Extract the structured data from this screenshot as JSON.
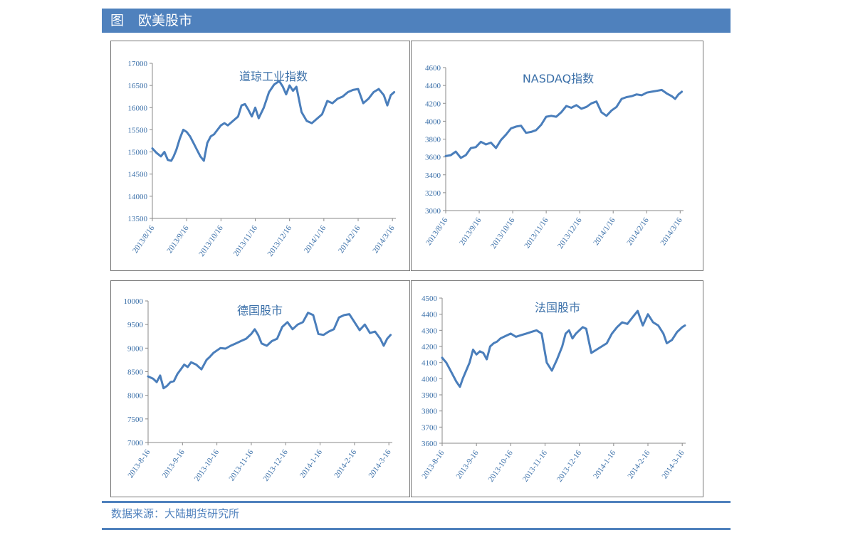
{
  "header": {
    "figure_label": "图",
    "title": "欧美股市"
  },
  "source_text": "数据来源：大陆期货研究所",
  "colors": {
    "line": "#4a7ebb",
    "banner": "#4f81bd",
    "text": "#3a6fa8"
  },
  "chart_data": [
    {
      "type": "line",
      "title": "道琼工业指数",
      "x_tick_labels": [
        "2013/8/16",
        "2013/9/16",
        "2013/10/16",
        "2013/11/16",
        "2013/12/16",
        "2014/1/16",
        "2014/2/16",
        "2014/3/16"
      ],
      "y_ticks": [
        13500,
        14000,
        14500,
        15000,
        15500,
        16000,
        16500,
        17000
      ],
      "ylim": [
        13500,
        17000
      ],
      "xlim": [
        0,
        7.1
      ],
      "series": [
        {
          "x": [
            0,
            0.12,
            0.25,
            0.35,
            0.45,
            0.55,
            0.62,
            0.7,
            0.8,
            0.9,
            1.0,
            1.1,
            1.2,
            1.3,
            1.4,
            1.5,
            1.6,
            1.7,
            1.8,
            1.9,
            2.0,
            2.1,
            2.2,
            2.35,
            2.5,
            2.6,
            2.7,
            2.8,
            2.9,
            3.0,
            3.1,
            3.25,
            3.4,
            3.55,
            3.7,
            3.8,
            3.9,
            4.0,
            4.1,
            4.2,
            4.35,
            4.5,
            4.65,
            4.8,
            4.95,
            5.1,
            5.25,
            5.4,
            5.55,
            5.7,
            5.85,
            6.0,
            6.15,
            6.3,
            6.45,
            6.6,
            6.75,
            6.85,
            6.95,
            7.05
          ],
          "y": [
            15080,
            14980,
            14900,
            15000,
            14820,
            14800,
            14900,
            15050,
            15300,
            15500,
            15450,
            15350,
            15200,
            15050,
            14900,
            14800,
            15200,
            15350,
            15400,
            15500,
            15600,
            15650,
            15600,
            15700,
            15800,
            16050,
            16080,
            15950,
            15800,
            16000,
            15760,
            16000,
            16350,
            16520,
            16600,
            16480,
            16300,
            16500,
            16380,
            16470,
            15900,
            15700,
            15650,
            15750,
            15850,
            16150,
            16100,
            16200,
            16250,
            16350,
            16400,
            16420,
            16100,
            16200,
            16350,
            16420,
            16280,
            16050,
            16280,
            16350
          ]
        }
      ]
    },
    {
      "type": "line",
      "title": "NASDAQ指数",
      "x_tick_labels": [
        "2013/8/16",
        "2013/9/16",
        "2013/10/16",
        "2013/11/16",
        "2013/12/16",
        "2014/1/16",
        "2014/2/16",
        "2014/3/16"
      ],
      "y_ticks": [
        3000,
        3200,
        3400,
        3600,
        3800,
        4000,
        4200,
        4400,
        4600
      ],
      "ylim": [
        3000,
        4600
      ],
      "xlim": [
        0,
        7.1
      ],
      "series": [
        {
          "x": [
            0,
            0.15,
            0.3,
            0.45,
            0.6,
            0.75,
            0.9,
            1.05,
            1.2,
            1.35,
            1.5,
            1.65,
            1.8,
            1.95,
            2.1,
            2.25,
            2.4,
            2.55,
            2.7,
            2.85,
            3.0,
            3.15,
            3.3,
            3.45,
            3.6,
            3.75,
            3.9,
            4.05,
            4.2,
            4.35,
            4.5,
            4.65,
            4.8,
            4.95,
            5.1,
            5.25,
            5.4,
            5.55,
            5.7,
            5.85,
            6.0,
            6.15,
            6.3,
            6.45,
            6.6,
            6.75,
            6.85,
            6.95,
            7.05
          ],
          "y": [
            3610,
            3620,
            3660,
            3590,
            3620,
            3700,
            3710,
            3770,
            3740,
            3760,
            3700,
            3790,
            3850,
            3920,
            3940,
            3950,
            3870,
            3880,
            3900,
            3960,
            4050,
            4060,
            4050,
            4100,
            4170,
            4150,
            4180,
            4140,
            4160,
            4200,
            4220,
            4100,
            4060,
            4120,
            4160,
            4250,
            4270,
            4280,
            4300,
            4290,
            4320,
            4330,
            4340,
            4350,
            4310,
            4280,
            4250,
            4300,
            4330
          ]
        }
      ]
    },
    {
      "type": "line",
      "title": "德国股市",
      "x_tick_labels": [
        "2013-8-16",
        "2013-9-16",
        "2013-10-16",
        "2013-11-16",
        "2013-12-16",
        "2014-1-16",
        "2014-2-16",
        "2014-3-16"
      ],
      "y_ticks": [
        7000,
        7500,
        8000,
        8500,
        9000,
        9500,
        10000
      ],
      "ylim": [
        7000,
        10000
      ],
      "xlim": [
        0,
        7.1
      ],
      "series": [
        {
          "x": [
            0,
            0.15,
            0.25,
            0.35,
            0.45,
            0.55,
            0.65,
            0.75,
            0.85,
            0.95,
            1.05,
            1.15,
            1.25,
            1.4,
            1.55,
            1.7,
            1.8,
            1.9,
            2.0,
            2.1,
            2.25,
            2.4,
            2.55,
            2.7,
            2.85,
            3.0,
            3.1,
            3.2,
            3.3,
            3.45,
            3.6,
            3.75,
            3.9,
            4.05,
            4.2,
            4.35,
            4.5,
            4.65,
            4.8,
            4.95,
            5.1,
            5.25,
            5.4,
            5.55,
            5.7,
            5.85,
            6.0,
            6.15,
            6.3,
            6.45,
            6.6,
            6.75,
            6.85,
            6.95,
            7.05
          ],
          "y": [
            8400,
            8350,
            8280,
            8420,
            8150,
            8200,
            8280,
            8300,
            8450,
            8550,
            8650,
            8600,
            8700,
            8650,
            8550,
            8750,
            8820,
            8900,
            8950,
            9000,
            8990,
            9050,
            9100,
            9150,
            9200,
            9300,
            9400,
            9280,
            9100,
            9050,
            9150,
            9200,
            9450,
            9550,
            9400,
            9500,
            9550,
            9750,
            9700,
            9300,
            9280,
            9350,
            9400,
            9650,
            9700,
            9720,
            9550,
            9380,
            9500,
            9320,
            9350,
            9200,
            9050,
            9200,
            9280
          ]
        }
      ]
    },
    {
      "type": "line",
      "title": "法国股市",
      "x_tick_labels": [
        "2013-8-16",
        "2013-9-16",
        "2013-10-16",
        "2013-11-16",
        "2013-12-16",
        "2014-1-16",
        "2014-2-16",
        "2014-3-16"
      ],
      "y_ticks": [
        3600,
        3700,
        3800,
        3900,
        4000,
        4100,
        4200,
        4300,
        4400,
        4500
      ],
      "ylim": [
        3600,
        4500
      ],
      "xlim": [
        0,
        7.1
      ],
      "series": [
        {
          "x": [
            0,
            0.12,
            0.22,
            0.32,
            0.42,
            0.52,
            0.6,
            0.7,
            0.8,
            0.9,
            1.0,
            1.1,
            1.2,
            1.3,
            1.4,
            1.5,
            1.6,
            1.7,
            1.8,
            1.9,
            2.0,
            2.15,
            2.3,
            2.45,
            2.6,
            2.75,
            2.9,
            3.05,
            3.2,
            3.35,
            3.5,
            3.6,
            3.7,
            3.8,
            3.9,
            4.0,
            4.1,
            4.2,
            4.35,
            4.5,
            4.65,
            4.8,
            4.95,
            5.1,
            5.25,
            5.4,
            5.55,
            5.7,
            5.85,
            6.0,
            6.15,
            6.3,
            6.45,
            6.55,
            6.7,
            6.85,
            7.0,
            7.08
          ],
          "y": [
            4130,
            4100,
            4060,
            4020,
            3980,
            3950,
            4000,
            4050,
            4100,
            4180,
            4150,
            4170,
            4160,
            4120,
            4200,
            4220,
            4230,
            4250,
            4260,
            4270,
            4280,
            4260,
            4270,
            4280,
            4290,
            4300,
            4280,
            4100,
            4050,
            4120,
            4200,
            4280,
            4300,
            4250,
            4280,
            4300,
            4320,
            4310,
            4160,
            4180,
            4200,
            4220,
            4280,
            4320,
            4350,
            4340,
            4380,
            4420,
            4330,
            4400,
            4350,
            4330,
            4280,
            4220,
            4240,
            4290,
            4320,
            4330
          ]
        }
      ]
    }
  ]
}
